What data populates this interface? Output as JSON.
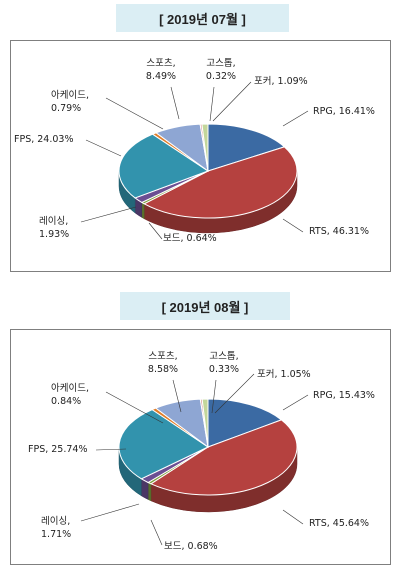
{
  "chart_data": [
    {
      "type": "pie",
      "title": "[ 2019년 07월 ]",
      "slices": [
        {
          "name": "RPG",
          "value": 16.41,
          "label": "RPG, 16.41%",
          "color": "#3b6aa3"
        },
        {
          "name": "RTS",
          "value": 46.31,
          "label": "RTS, 46.31%",
          "color": "#b5413f"
        },
        {
          "name": "보드",
          "value": 0.64,
          "label": "보드, 0.64%",
          "color": "#7ea03f"
        },
        {
          "name": "레이싱",
          "value": 1.93,
          "label": "레이싱,\n1.93%",
          "color": "#6b4e92"
        },
        {
          "name": "FPS",
          "value": 24.03,
          "label": "FPS, 24.03%",
          "color": "#3293ad"
        },
        {
          "name": "아케이드",
          "value": 0.79,
          "label": "아케이드,\n0.79%",
          "color": "#e07e2a"
        },
        {
          "name": "스포츠",
          "value": 8.49,
          "label": "스포츠,\n8.49%",
          "color": "#8ea6d3"
        },
        {
          "name": "고스톱",
          "value": 0.32,
          "label": "고스톱,\n0.32%",
          "color": "#d99794"
        },
        {
          "name": "포커",
          "value": 1.09,
          "label": "포커, 1.09%",
          "color": "#c3d69b"
        }
      ]
    },
    {
      "type": "pie",
      "title": "[ 2019년 08월 ]",
      "slices": [
        {
          "name": "RPG",
          "value": 15.43,
          "label": "RPG, 15.43%",
          "color": "#3b6aa3"
        },
        {
          "name": "RTS",
          "value": 45.64,
          "label": "RTS, 45.64%",
          "color": "#b5413f"
        },
        {
          "name": "보드",
          "value": 0.68,
          "label": "보드, 0.68%",
          "color": "#7ea03f"
        },
        {
          "name": "레이싱",
          "value": 1.71,
          "label": "레이싱,\n1.71%",
          "color": "#6b4e92"
        },
        {
          "name": "FPS",
          "value": 25.74,
          "label": "FPS, 25.74%",
          "color": "#3293ad"
        },
        {
          "name": "아케이드",
          "value": 0.84,
          "label": "아케이드,\n0.84%",
          "color": "#e07e2a"
        },
        {
          "name": "스포츠",
          "value": 8.58,
          "label": "스포츠,\n8.58%",
          "color": "#8ea6d3"
        },
        {
          "name": "고스톱",
          "value": 0.33,
          "label": "고스톱,\n0.33%",
          "color": "#d99794"
        },
        {
          "name": "포커",
          "value": 1.05,
          "label": "포커, 1.05%",
          "color": "#c3d69b"
        }
      ]
    }
  ]
}
